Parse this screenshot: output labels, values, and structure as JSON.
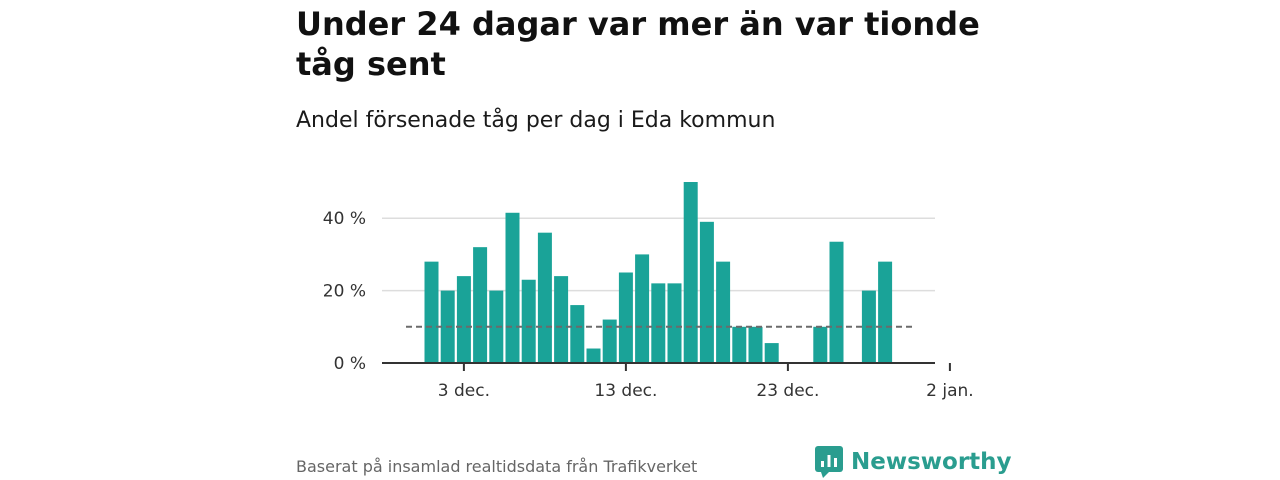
{
  "title": "Under 24 dagar var mer än var tionde tåg sent",
  "subtitle": "Andel försenade tåg per dag i Eda kommun",
  "footer": "Baserat på insamlad realtidsdata från Trafikverket",
  "brand": "Newsworthy",
  "colors": {
    "bar": "#1aa398",
    "reference": "#6b6b6b",
    "grid": "#dddddd",
    "axis": "#333333",
    "brand": "#2a9d8f"
  },
  "chart_data": {
    "type": "bar",
    "x_unit": "day of December",
    "categories": [
      1,
      2,
      3,
      4,
      5,
      6,
      7,
      8,
      9,
      10,
      11,
      12,
      13,
      14,
      15,
      16,
      17,
      18,
      19,
      20,
      21,
      22,
      23,
      24,
      25,
      26,
      27,
      28,
      29,
      30
    ],
    "values": [
      28,
      20,
      24,
      32,
      20,
      41.5,
      23,
      36,
      24,
      16,
      4,
      12,
      25,
      30,
      22,
      22,
      50,
      39,
      28,
      10,
      10,
      5.5,
      null,
      null,
      10,
      33.5,
      null,
      20,
      28,
      null
    ],
    "y_unit": "%",
    "ylim": [
      0,
      50
    ],
    "yticks": [
      0,
      20,
      40
    ],
    "ytick_labels": [
      "0 %",
      "20 %",
      "40 %"
    ],
    "xticks": [
      3,
      13,
      23,
      33
    ],
    "xtick_labels": [
      "3 dec.",
      "13 dec.",
      "23 dec.",
      "2 jan."
    ],
    "reference_line": 10,
    "grid": true
  }
}
